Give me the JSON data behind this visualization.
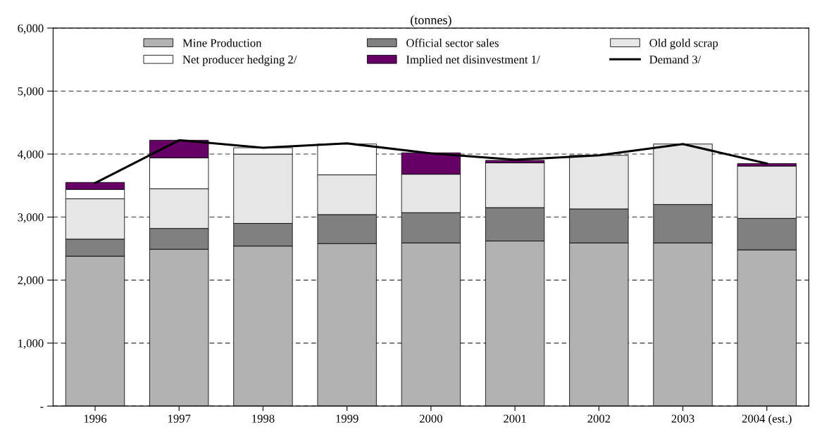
{
  "chart_data": {
    "type": "bar",
    "stacked": true,
    "title": "(tonnes)",
    "categories": [
      "1996",
      "1997",
      "1998",
      "1999",
      "2000",
      "2001",
      "2002",
      "2003",
      "2004 (est.)"
    ],
    "series": [
      {
        "name": "Mine Production",
        "color": "#b2b2b2",
        "values": [
          2380,
          2490,
          2540,
          2580,
          2590,
          2620,
          2590,
          2590,
          2480
        ]
      },
      {
        "name": "Official sector sales",
        "color": "#808080",
        "values": [
          270,
          330,
          360,
          460,
          480,
          530,
          540,
          610,
          500
        ]
      },
      {
        "name": "Old gold scrap",
        "color": "#e6e6e6",
        "values": [
          640,
          630,
          1100,
          630,
          610,
          710,
          850,
          960,
          830
        ]
      },
      {
        "name": "Net producer hedging 2/",
        "color": "#ffffff",
        "values": [
          150,
          490,
          100,
          490,
          null,
          null,
          null,
          null,
          null
        ]
      },
      {
        "name": "Implied net disinvestment 1/",
        "color": "#660066",
        "values": [
          110,
          280,
          null,
          null,
          340,
          40,
          null,
          null,
          40
        ]
      },
      {
        "name": "Demand 3/",
        "type": "line",
        "color": "#000000",
        "values": [
          3540,
          4220,
          4100,
          4170,
          4010,
          3910,
          3980,
          4160,
          3850
        ]
      }
    ],
    "ylim": [
      0,
      6000
    ],
    "yticks": [
      {
        "value": 0,
        "label": "-"
      },
      {
        "value": 1000,
        "label": "1,000"
      },
      {
        "value": 2000,
        "label": "2,000"
      },
      {
        "value": 3000,
        "label": "3,000"
      },
      {
        "value": 4000,
        "label": "4,000"
      },
      {
        "value": 5000,
        "label": "5,000"
      },
      {
        "value": 6000,
        "label": "6,000"
      }
    ],
    "grid": "y",
    "legend": "top",
    "marker": "none",
    "line_style": "solid"
  }
}
